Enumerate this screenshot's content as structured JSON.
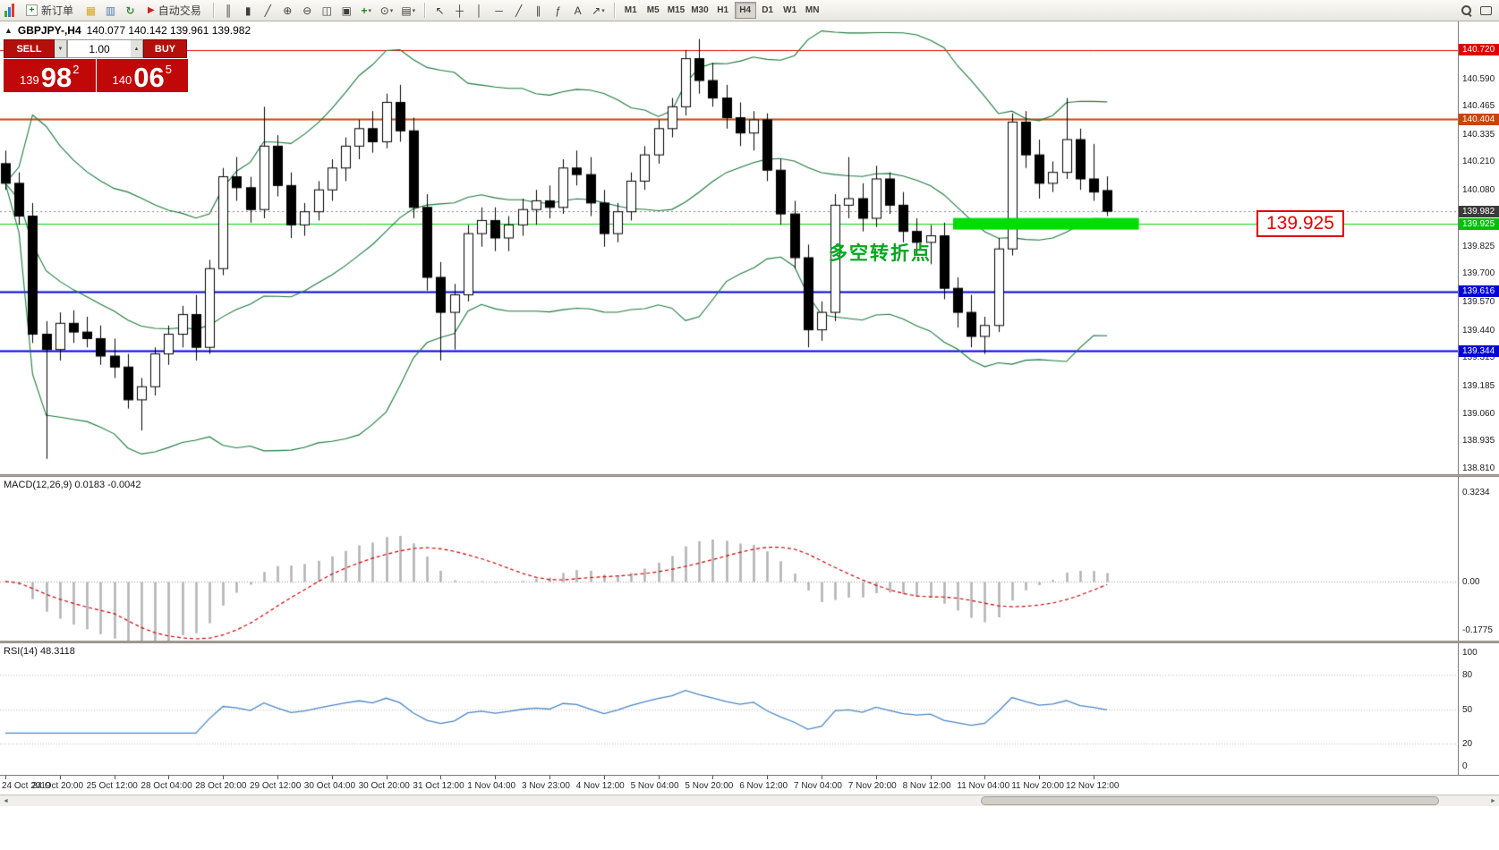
{
  "toolbar": {
    "new_order_label": "新订单",
    "auto_trading_label": "自动交易",
    "icons_left": [
      {
        "name": "profiles-icon",
        "glyph": "▦",
        "color": "#d8a520"
      },
      {
        "name": "market-watch-icon",
        "glyph": "▥",
        "color": "#4a7ab5"
      },
      {
        "name": "refresh-icon",
        "glyph": "↻",
        "color": "#3a8a3a"
      }
    ],
    "icons_chart": [
      {
        "name": "bar-chart-icon",
        "glyph": "║"
      },
      {
        "name": "candlestick-chart-icon",
        "glyph": "▮"
      },
      {
        "name": "line-chart-icon",
        "glyph": "╱"
      },
      {
        "name": "zoom-in-icon",
        "glyph": "⊕"
      },
      {
        "name": "zoom-out-icon",
        "glyph": "⊖"
      },
      {
        "name": "tile-windows-icon",
        "glyph": "◫"
      },
      {
        "name": "cascade-windows-icon",
        "glyph": "▣"
      },
      {
        "name": "indicators-icon",
        "glyph": "+",
        "color": "#1a8a1a",
        "caret": true
      },
      {
        "name": "periods-icon",
        "glyph": "⊙",
        "caret": true
      },
      {
        "name": "templates-icon",
        "glyph": "▤",
        "caret": true
      }
    ],
    "icons_tools": [
      {
        "name": "cursor-icon",
        "glyph": "↖"
      },
      {
        "name": "crosshair-icon",
        "glyph": "┼"
      },
      {
        "name": "vertical-line-icon",
        "glyph": "│"
      },
      {
        "name": "horizontal-line-icon",
        "glyph": "─"
      },
      {
        "name": "trendline-icon",
        "glyph": "╱"
      },
      {
        "name": "channel-icon",
        "glyph": "∥"
      },
      {
        "name": "fibonacci-icon",
        "glyph": "ƒ"
      },
      {
        "name": "text-label-icon",
        "glyph": "A"
      },
      {
        "name": "arrow-tool-icon",
        "glyph": "↗",
        "caret": true
      }
    ],
    "icons_right": [
      {
        "name": "search-icon",
        "css": "search-glyph"
      },
      {
        "name": "chat-icon",
        "css": "chat-glyph"
      }
    ],
    "timeframes": [
      "M1",
      "M5",
      "M15",
      "M30",
      "H1",
      "H4",
      "D1",
      "W1",
      "MN"
    ],
    "active_timeframe": "H4"
  },
  "trade_panel": {
    "sell_label": "SELL",
    "buy_label": "BUY",
    "volume": "1.00",
    "sell_price": {
      "small": "139",
      "big": "98",
      "sup": "2"
    },
    "buy_price": {
      "small": "140",
      "big": "06",
      "sup": "5"
    }
  },
  "chart": {
    "symbol_info": "GBPJPY-,H4",
    "ohlc_info": "140.077 140.142 139.961 139.982",
    "annotation": "多空转折点",
    "callout_price": "139.925",
    "current_price": "139.982",
    "scale_ticks": [
      "140.590",
      "140.465",
      "140.335",
      "140.210",
      "140.080",
      "139.825",
      "139.700",
      "139.570",
      "139.440",
      "139.315",
      "139.185",
      "139.060",
      "138.935",
      "138.810"
    ],
    "level_labels": [
      {
        "price": "140.720",
        "color": "#e00000"
      },
      {
        "price": "140.404",
        "color": "#cc4400"
      },
      {
        "price": "139.982",
        "color": "#3b3b3b"
      },
      {
        "price": "139.925",
        "color": "#00c000"
      },
      {
        "price": "139.616",
        "color": "#0000d8"
      },
      {
        "price": "139.344",
        "color": "#0000d8"
      }
    ]
  },
  "macd": {
    "label": "MACD(12,26,9) 0.0183 -0.0042",
    "scale_top": "0.3234",
    "scale_zero": "0.00",
    "scale_bottom": "-0.1775"
  },
  "rsi": {
    "label": "RSI(14) 48.3118",
    "scale": [
      "100",
      "80",
      "50",
      "20",
      "0"
    ]
  },
  "time_axis": [
    "24 Oct 2019",
    "24 Oct 20:00",
    "25 Oct 12:00",
    "28 Oct 04:00",
    "28 Oct 20:00",
    "29 Oct 12:00",
    "30 Oct 04:00",
    "30 Oct 20:00",
    "31 Oct 12:00",
    "1 Nov 04:00",
    "3 Nov 23:00",
    "4 Nov 12:00",
    "5 Nov 04:00",
    "5 Nov 20:00",
    "6 Nov 12:00",
    "7 Nov 04:00",
    "7 Nov 20:00",
    "8 Nov 12:00",
    "11 Nov 04:00",
    "11 Nov 20:00",
    "12 Nov 12:00"
  ],
  "chart_data": {
    "type": "candlestick",
    "symbol": "GBPJPY-",
    "timeframe": "H4",
    "price_range": [
      138.78,
      140.85
    ],
    "ohlc": [
      [
        140.2,
        140.26,
        140.08,
        140.11
      ],
      [
        140.11,
        140.16,
        139.92,
        139.96
      ],
      [
        139.96,
        140.02,
        139.38,
        139.42
      ],
      [
        139.42,
        139.48,
        138.85,
        139.35
      ],
      [
        139.35,
        139.52,
        139.3,
        139.47
      ],
      [
        139.47,
        139.53,
        139.38,
        139.43
      ],
      [
        139.43,
        139.5,
        139.36,
        139.4
      ],
      [
        139.4,
        139.46,
        139.28,
        139.32
      ],
      [
        139.32,
        139.4,
        139.22,
        139.27
      ],
      [
        139.27,
        139.33,
        139.08,
        139.12
      ],
      [
        139.12,
        139.22,
        138.98,
        139.18
      ],
      [
        139.18,
        139.36,
        139.14,
        139.33
      ],
      [
        139.33,
        139.46,
        139.28,
        139.42
      ],
      [
        139.42,
        139.55,
        139.36,
        139.51
      ],
      [
        139.51,
        139.6,
        139.3,
        139.36
      ],
      [
        139.36,
        139.76,
        139.33,
        139.72
      ],
      [
        139.72,
        140.18,
        139.69,
        140.14
      ],
      [
        140.14,
        140.23,
        140.03,
        140.09
      ],
      [
        140.09,
        140.14,
        139.93,
        139.99
      ],
      [
        139.99,
        140.46,
        139.95,
        140.28
      ],
      [
        140.28,
        140.33,
        140.05,
        140.1
      ],
      [
        140.1,
        140.16,
        139.86,
        139.92
      ],
      [
        139.92,
        140.02,
        139.87,
        139.98
      ],
      [
        139.98,
        140.12,
        139.94,
        140.08
      ],
      [
        140.08,
        140.22,
        140.03,
        140.18
      ],
      [
        140.18,
        140.32,
        140.12,
        140.28
      ],
      [
        140.28,
        140.4,
        140.22,
        140.36
      ],
      [
        140.36,
        140.44,
        140.25,
        140.3
      ],
      [
        140.3,
        140.52,
        140.27,
        140.48
      ],
      [
        140.48,
        140.56,
        140.3,
        140.35
      ],
      [
        140.35,
        140.41,
        139.95,
        140.0
      ],
      [
        140.0,
        140.06,
        139.62,
        139.68
      ],
      [
        139.68,
        139.75,
        139.3,
        139.52
      ],
      [
        139.52,
        139.65,
        139.35,
        139.6
      ],
      [
        139.6,
        139.92,
        139.57,
        139.88
      ],
      [
        139.88,
        140.0,
        139.82,
        139.94
      ],
      [
        139.94,
        140.0,
        139.8,
        139.86
      ],
      [
        139.86,
        139.96,
        139.8,
        139.92
      ],
      [
        139.92,
        140.04,
        139.87,
        139.99
      ],
      [
        139.99,
        140.08,
        139.92,
        140.03
      ],
      [
        140.03,
        140.1,
        139.95,
        140.0
      ],
      [
        140.0,
        140.22,
        139.97,
        140.18
      ],
      [
        140.18,
        140.26,
        140.1,
        140.15
      ],
      [
        140.15,
        140.23,
        139.96,
        140.02
      ],
      [
        140.02,
        140.08,
        139.82,
        139.88
      ],
      [
        139.88,
        140.02,
        139.84,
        139.98
      ],
      [
        139.98,
        140.16,
        139.94,
        140.12
      ],
      [
        140.12,
        140.28,
        140.08,
        140.24
      ],
      [
        140.24,
        140.4,
        140.2,
        140.36
      ],
      [
        140.36,
        140.5,
        140.32,
        140.46
      ],
      [
        140.46,
        140.72,
        140.42,
        140.68
      ],
      [
        140.68,
        140.77,
        140.52,
        140.58
      ],
      [
        140.58,
        140.66,
        140.46,
        140.5
      ],
      [
        140.5,
        140.56,
        140.36,
        140.41
      ],
      [
        140.41,
        140.48,
        140.28,
        140.34
      ],
      [
        140.34,
        140.44,
        140.26,
        140.4
      ],
      [
        140.4,
        140.43,
        140.12,
        140.17
      ],
      [
        140.17,
        140.22,
        139.92,
        139.97
      ],
      [
        139.97,
        140.03,
        139.72,
        139.77
      ],
      [
        139.77,
        139.83,
        139.36,
        139.44
      ],
      [
        139.44,
        139.57,
        139.39,
        139.52
      ],
      [
        139.52,
        140.06,
        139.48,
        140.01
      ],
      [
        140.01,
        140.23,
        139.95,
        140.04
      ],
      [
        140.04,
        140.11,
        139.89,
        139.95
      ],
      [
        139.95,
        140.19,
        139.91,
        140.13
      ],
      [
        140.13,
        140.16,
        139.97,
        140.01
      ],
      [
        140.01,
        140.07,
        139.84,
        139.89
      ],
      [
        139.89,
        139.95,
        139.78,
        139.84
      ],
      [
        139.84,
        139.92,
        139.74,
        139.87
      ],
      [
        139.87,
        139.93,
        139.58,
        139.63
      ],
      [
        139.63,
        139.68,
        139.45,
        139.52
      ],
      [
        139.52,
        139.6,
        139.36,
        139.41
      ],
      [
        139.41,
        139.5,
        139.33,
        139.46
      ],
      [
        139.46,
        139.86,
        139.43,
        139.81
      ],
      [
        139.81,
        140.43,
        139.78,
        140.39
      ],
      [
        140.39,
        140.44,
        140.18,
        140.24
      ],
      [
        140.24,
        140.31,
        140.04,
        140.11
      ],
      [
        140.11,
        140.21,
        140.07,
        140.16
      ],
      [
        140.16,
        140.5,
        140.13,
        140.31
      ],
      [
        140.31,
        140.36,
        140.08,
        140.13
      ],
      [
        140.13,
        140.29,
        140.03,
        140.07
      ],
      [
        140.077,
        140.142,
        139.961,
        139.982
      ]
    ],
    "horizontal_levels": [
      {
        "price": 140.72,
        "color": "#e00000",
        "width": 1
      },
      {
        "price": 140.404,
        "color": "#cc4400",
        "width": 2
      },
      {
        "price": 139.925,
        "color": "#00d800",
        "width": 1
      },
      {
        "price": 139.616,
        "color": "#0000d8",
        "width": 2
      },
      {
        "price": 139.344,
        "color": "#0000d8",
        "width": 2
      }
    ],
    "zone": {
      "price": 139.925,
      "start_index": 70,
      "end_index": 83,
      "color": "#00dd00"
    },
    "indicators": {
      "bollinger": {
        "period": 20,
        "deviation": 2,
        "color": "#1a7a3c"
      },
      "macd": {
        "fast": 12,
        "slow": 26,
        "signal": 9,
        "histogram_color": "#b4b4b4",
        "signal_color": "#d00000",
        "range": [
          -0.215,
          0.38
        ]
      },
      "rsi": {
        "period": 14,
        "color": "#4a86c8",
        "levels": [
          80,
          50,
          20
        ],
        "range": [
          -8,
          108
        ]
      }
    },
    "colors": {
      "bull": "#ffffff",
      "bear": "#000000",
      "outline": "#000000",
      "background": "#ffffff"
    }
  }
}
